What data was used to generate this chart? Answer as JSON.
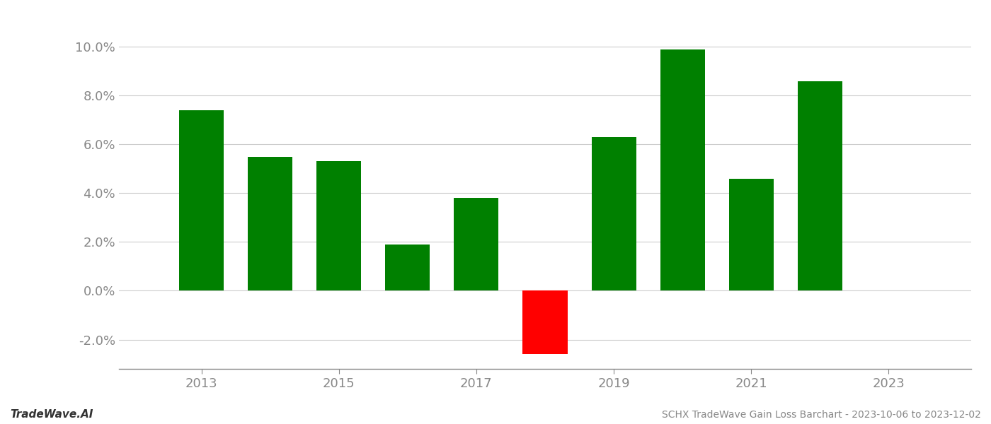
{
  "years": [
    2013,
    2014,
    2015,
    2016,
    2017,
    2018,
    2019,
    2020,
    2021,
    2022
  ],
  "values": [
    0.074,
    0.055,
    0.053,
    0.019,
    0.038,
    -0.026,
    0.063,
    0.099,
    0.046,
    0.086
  ],
  "colors": [
    "#008000",
    "#008000",
    "#008000",
    "#008000",
    "#008000",
    "#ff0000",
    "#008000",
    "#008000",
    "#008000",
    "#008000"
  ],
  "title": "SCHX TradeWave Gain Loss Barchart - 2023-10-06 to 2023-12-02",
  "watermark": "TradeWave.AI",
  "ylim_min": -0.032,
  "ylim_max": 0.107,
  "background_color": "#ffffff",
  "grid_color": "#cccccc",
  "axis_label_color": "#888888",
  "bar_width": 0.65,
  "xlim_min": 2011.8,
  "xlim_max": 2024.2
}
